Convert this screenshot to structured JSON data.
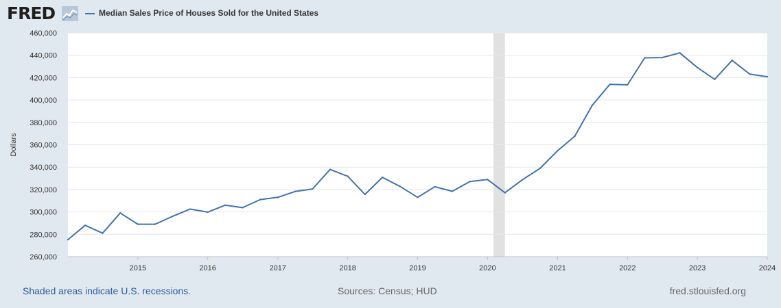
{
  "header": {
    "logo_text": "FRED",
    "logo_icon": "fred-graph-icon",
    "legend_label": "Median Sales Price of Houses Sold for the United States"
  },
  "footer": {
    "note": "Shaded areas indicate U.S. recessions.",
    "sources": "Sources: Census; HUD",
    "url": "fred.stlouisfed.org"
  },
  "colors": {
    "background": "#e1e9f0",
    "plot_background": "#ffffff",
    "series_line": "#4572a7",
    "recession_shading": "#e1e1e1",
    "gridline": "#e6e6e6"
  },
  "chart_data": {
    "type": "line",
    "title": "Median Sales Price of Houses Sold for the United States",
    "xlabel": "",
    "ylabel": "Dollars",
    "x_type": "date",
    "xlim": [
      "2014-01-01",
      "2024-01-01"
    ],
    "ylim": [
      260000,
      460000
    ],
    "y_ticks": [
      260000,
      280000,
      300000,
      320000,
      340000,
      360000,
      380000,
      400000,
      420000,
      440000,
      460000
    ],
    "y_tick_labels": [
      "260,000",
      "280,000",
      "300,000",
      "320,000",
      "340,000",
      "360,000",
      "380,000",
      "400,000",
      "420,000",
      "440,000",
      "460,000"
    ],
    "x_ticks": [
      "2015-01-01",
      "2016-01-01",
      "2017-01-01",
      "2018-01-01",
      "2019-01-01",
      "2020-01-01",
      "2021-01-01",
      "2022-01-01",
      "2023-01-01",
      "2024-01-01"
    ],
    "x_tick_labels": [
      "2015",
      "2016",
      "2017",
      "2018",
      "2019",
      "2020",
      "2021",
      "2022",
      "2023",
      "2024"
    ],
    "grid": true,
    "legend_position": "top-left",
    "recessions": [
      {
        "start": "2020-02-01",
        "end": "2020-04-01"
      }
    ],
    "series": [
      {
        "name": "Median Sales Price of Houses Sold for the United States",
        "x": [
          "2014-01-01",
          "2014-04-01",
          "2014-07-01",
          "2014-10-01",
          "2015-01-01",
          "2015-04-01",
          "2015-07-01",
          "2015-10-01",
          "2016-01-01",
          "2016-04-01",
          "2016-07-01",
          "2016-10-01",
          "2017-01-01",
          "2017-04-01",
          "2017-07-01",
          "2017-10-01",
          "2018-01-01",
          "2018-04-01",
          "2018-07-01",
          "2018-10-01",
          "2019-01-01",
          "2019-04-01",
          "2019-07-01",
          "2019-10-01",
          "2020-01-01",
          "2020-04-01",
          "2020-07-01",
          "2020-10-01",
          "2021-01-01",
          "2021-04-01",
          "2021-07-01",
          "2021-10-01",
          "2022-01-01",
          "2022-04-01",
          "2022-07-01",
          "2022-10-01",
          "2023-01-01",
          "2023-04-01",
          "2023-07-01",
          "2023-10-01",
          "2024-01-01"
        ],
        "values": [
          275200,
          288000,
          281000,
          299000,
          289000,
          289000,
          296000,
          302500,
          299800,
          306000,
          303800,
          311000,
          313000,
          318200,
          320500,
          337900,
          331800,
          315600,
          330900,
          322800,
          313000,
          322500,
          318400,
          327100,
          329000,
          317100,
          328700,
          338900,
          354700,
          367700,
          395300,
          414000,
          413600,
          437700,
          437900,
          442100,
          429000,
          418500,
          435400,
          423200,
          420800
        ]
      }
    ]
  }
}
